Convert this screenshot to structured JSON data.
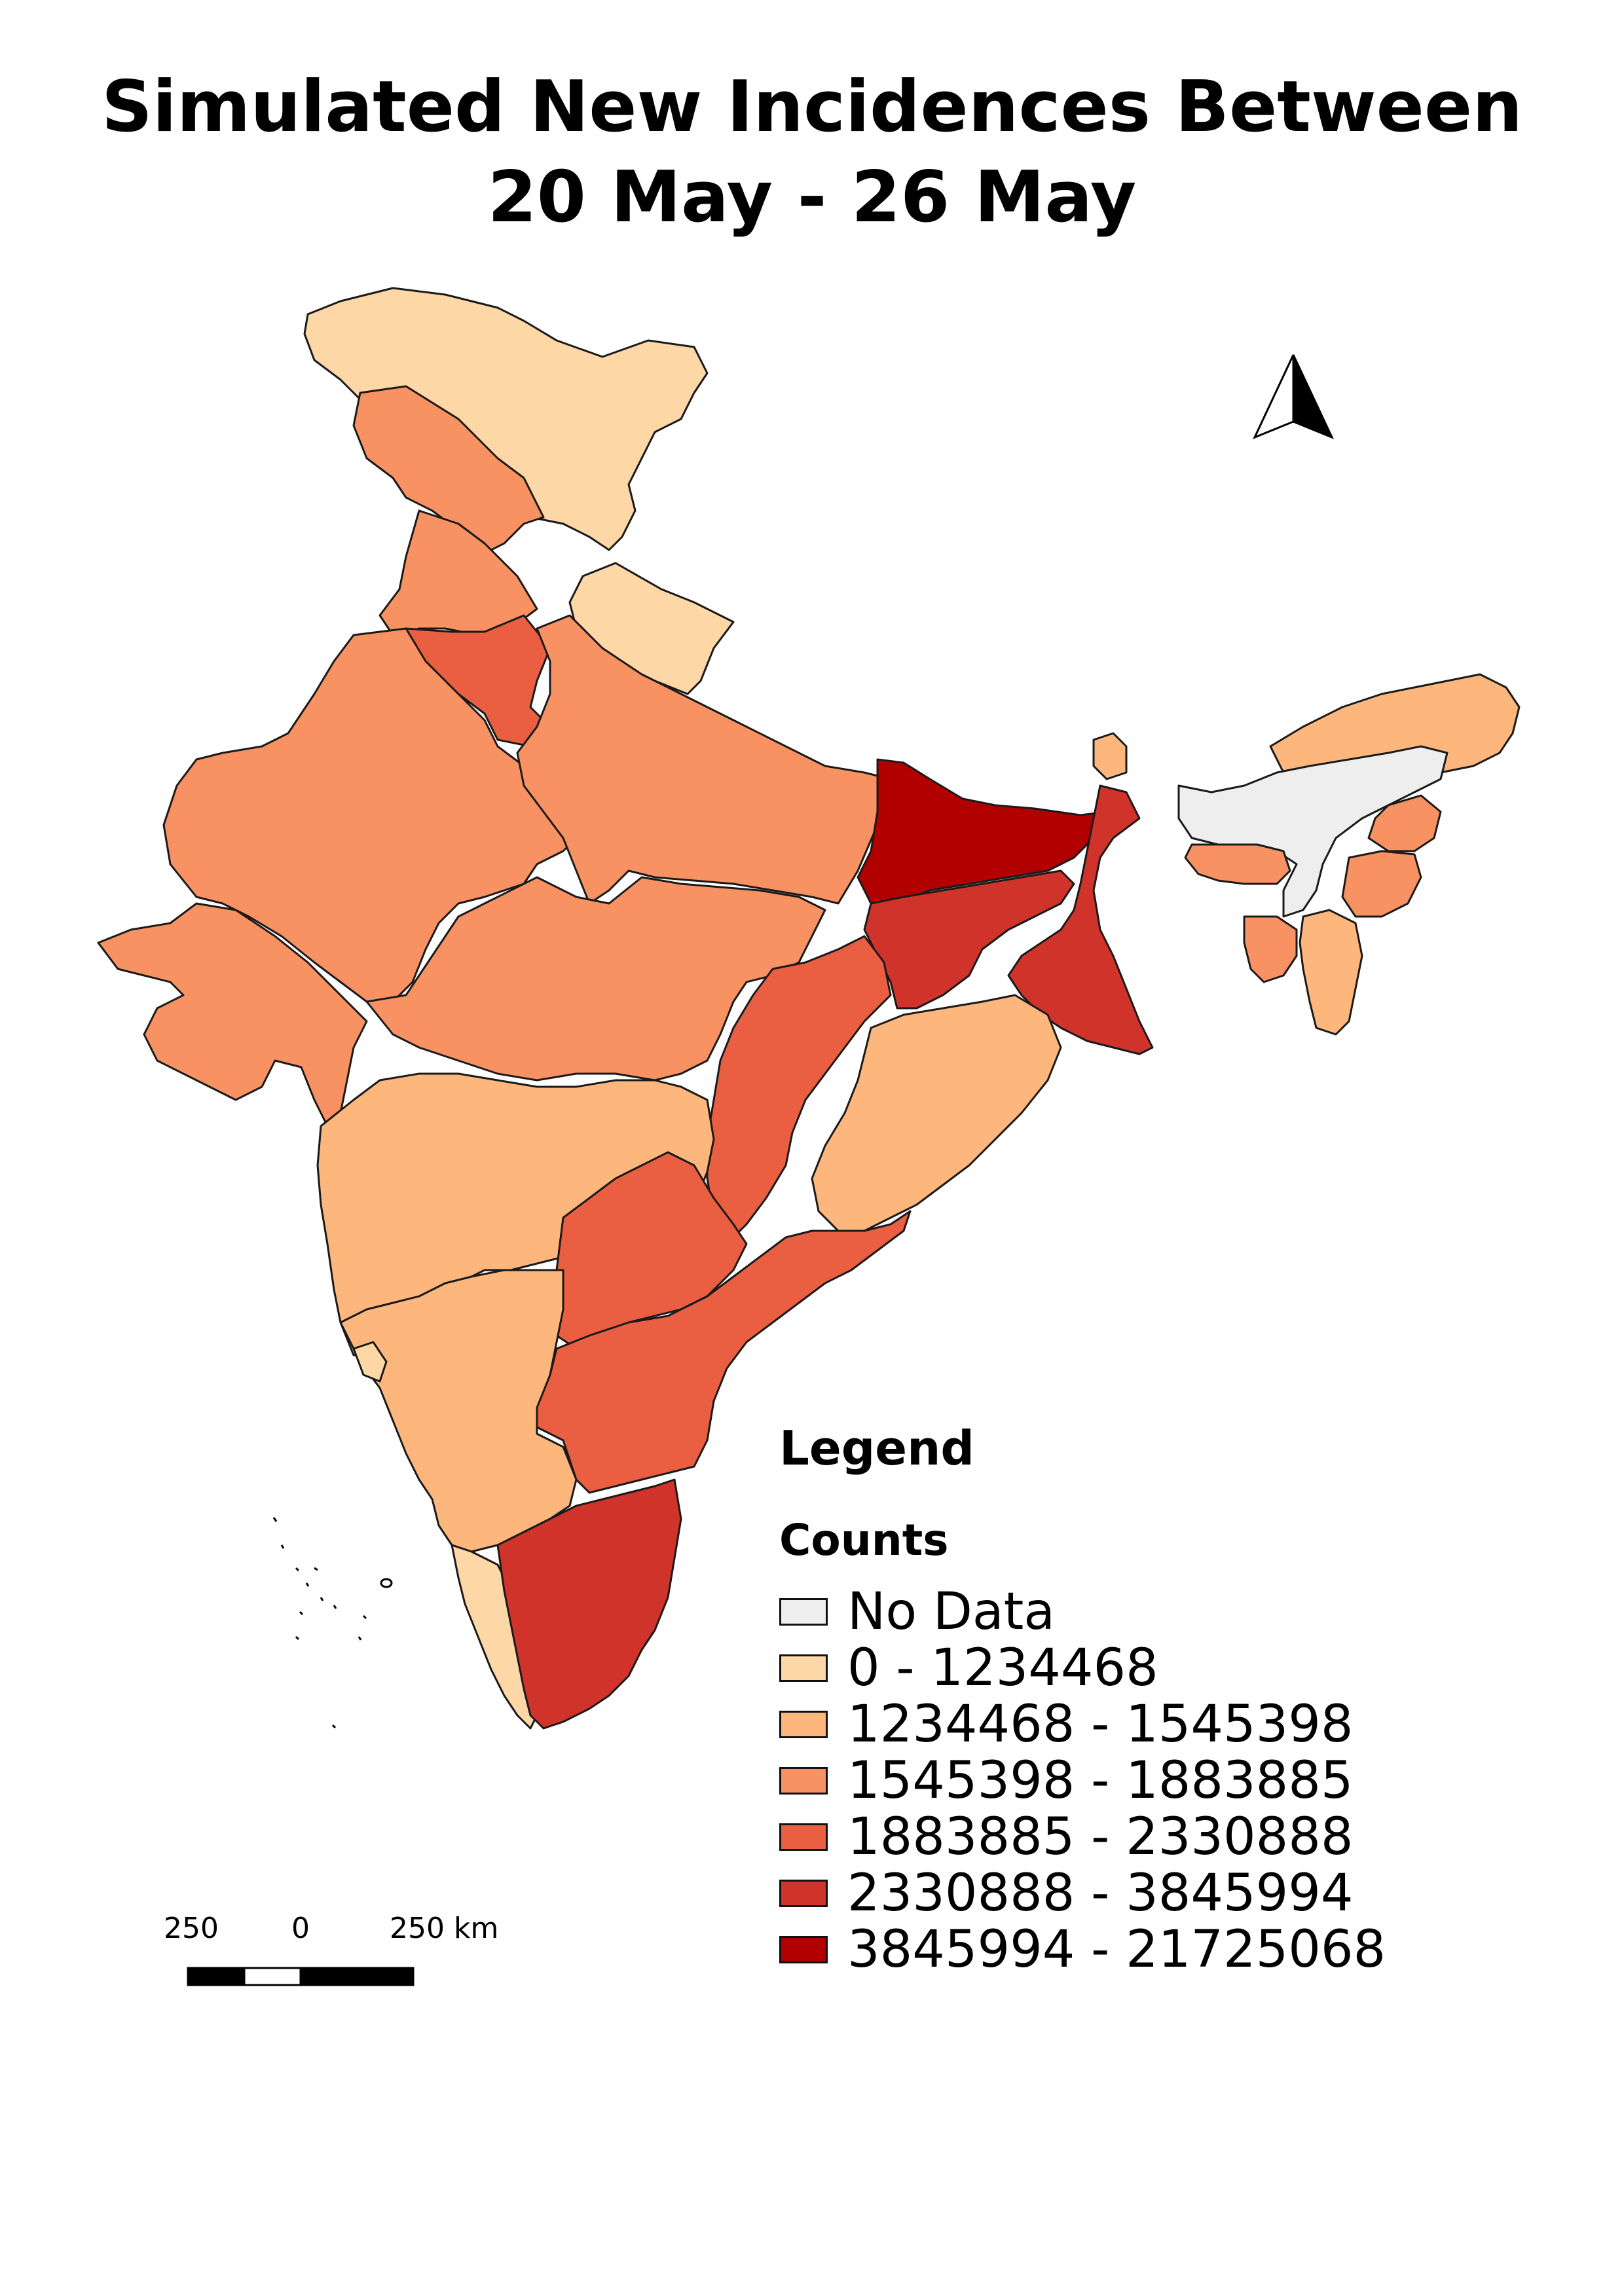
{
  "title": {
    "line1": "Simulated New Incidences Between",
    "line2": "20 May - 26 May"
  },
  "legend": {
    "heading": "Legend",
    "subheading": "Counts",
    "classes": [
      {
        "label": "No Data",
        "color": "#eeeeee"
      },
      {
        "label": "0 - 1234468",
        "color": "#fdd7a6"
      },
      {
        "label": "1234468 - 1545398",
        "color": "#fdb77c"
      },
      {
        "label": "1545398 - 1883885",
        "color": "#f99262"
      },
      {
        "label": "1883885 - 2330888",
        "color": "#ea5f42"
      },
      {
        "label": "2330888 - 3845994",
        "color": "#d0332a"
      },
      {
        "label": "3845994 - 21725068",
        "color": "#b20000"
      }
    ]
  },
  "scale_bar": {
    "labels": [
      "250",
      "0",
      "250 km"
    ]
  },
  "north_arrow": {
    "icon": "north-arrow-icon"
  },
  "map": {
    "regions": [
      {
        "name": "Jammu & Kashmir / Ladakh",
        "class": 1
      },
      {
        "name": "Himachal Pradesh",
        "class": 3
      },
      {
        "name": "Punjab",
        "class": 3
      },
      {
        "name": "Uttarakhand",
        "class": 1
      },
      {
        "name": "Haryana",
        "class": 4
      },
      {
        "name": "Rajasthan",
        "class": 3
      },
      {
        "name": "Uttar Pradesh",
        "class": 3
      },
      {
        "name": "Gujarat",
        "class": 3
      },
      {
        "name": "Madhya Pradesh",
        "class": 3
      },
      {
        "name": "Bihar",
        "class": 6
      },
      {
        "name": "Jharkhand",
        "class": 5
      },
      {
        "name": "West Bengal",
        "class": 5
      },
      {
        "name": "Sikkim",
        "class": 2
      },
      {
        "name": "Chhattisgarh",
        "class": 4
      },
      {
        "name": "Odisha",
        "class": 2
      },
      {
        "name": "Maharashtra",
        "class": 2
      },
      {
        "name": "Telangana",
        "class": 4
      },
      {
        "name": "Andhra Pradesh",
        "class": 4
      },
      {
        "name": "Karnataka",
        "class": 2
      },
      {
        "name": "Goa",
        "class": 1
      },
      {
        "name": "Kerala",
        "class": 1
      },
      {
        "name": "Tamil Nadu",
        "class": 5
      },
      {
        "name": "Arunachal Pradesh",
        "class": 2
      },
      {
        "name": "Assam",
        "class": 0
      },
      {
        "name": "Meghalaya",
        "class": 3
      },
      {
        "name": "Nagaland",
        "class": 3
      },
      {
        "name": "Manipur",
        "class": 3
      },
      {
        "name": "Mizoram",
        "class": 2
      },
      {
        "name": "Tripura",
        "class": 3
      }
    ]
  }
}
